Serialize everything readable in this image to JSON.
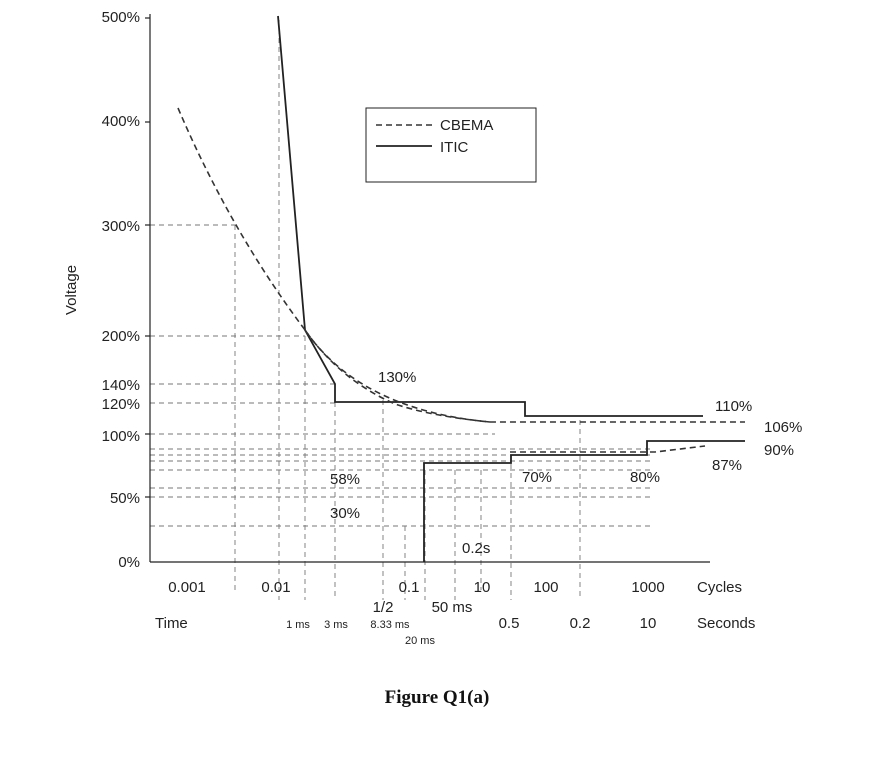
{
  "chart_data": {
    "type": "line",
    "caption": "Figure Q1(a)",
    "ylabel": "Voltage",
    "y_tick_labels": [
      "0%",
      "50%",
      "100%",
      "120%",
      "140%",
      "200%",
      "300%",
      "400%",
      "500%"
    ],
    "x_cycle_tick_labels": [
      "0.001",
      "0.01",
      "0.1",
      "1/2",
      "10",
      "100",
      "1000"
    ],
    "x_cycle_axis_label": "Cycles",
    "x_time_label": "Time",
    "x_time_ticks": [
      "1 ms",
      "3 ms",
      "8.33 ms",
      "20 ms",
      "50 ms",
      "0.5",
      "0.2",
      "10"
    ],
    "x_time_axis_label": "Seconds",
    "legend": {
      "position": "top-center",
      "entries": [
        "CBEMA",
        "ITIC"
      ]
    },
    "annotations": [
      "130%",
      "110%",
      "106%",
      "90%",
      "87%",
      "58%",
      "30%",
      "70%",
      "80%",
      "0.2s"
    ],
    "series": [
      {
        "name": "ITIC",
        "style": "solid",
        "upper_points": [
          [
            0.01,
            500
          ],
          [
            0.017,
            200
          ],
          [
            0.03,
            120
          ],
          [
            3,
            120
          ],
          [
            30,
            110
          ],
          [
            1000,
            110
          ]
        ],
        "lower_points": [
          [
            0.3,
            0
          ],
          [
            0.3,
            70
          ],
          [
            10,
            70
          ],
          [
            30,
            80
          ],
          [
            500,
            80
          ],
          [
            500,
            90
          ],
          [
            1000,
            90
          ]
        ]
      },
      {
        "name": "CBEMA",
        "style": "dashed",
        "upper_points": [
          [
            0.002,
            400
          ],
          [
            0.003,
            300
          ],
          [
            0.01,
            200
          ],
          [
            0.05,
            140
          ],
          [
            0.1,
            125
          ],
          [
            0.5,
            112
          ],
          [
            2,
            106
          ],
          [
            1000,
            106
          ]
        ],
        "lower_points": [
          [
            10,
            87
          ],
          [
            1000,
            87
          ]
        ]
      }
    ],
    "grid": "dashed"
  }
}
